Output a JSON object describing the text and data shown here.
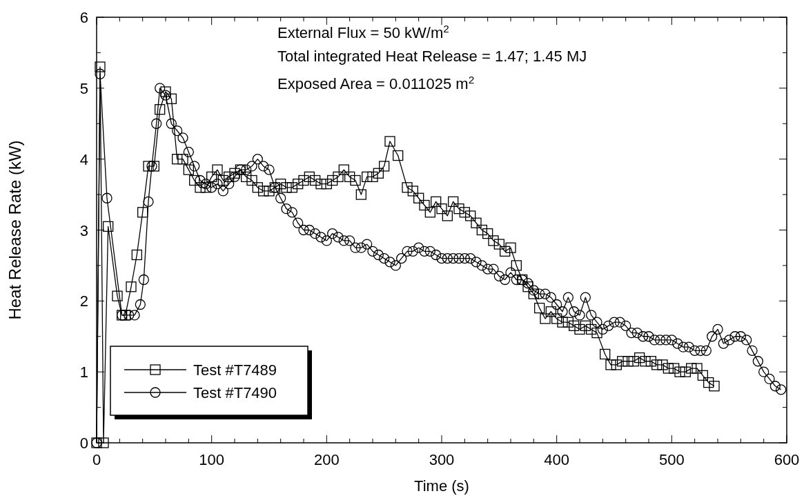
{
  "chart_data": {
    "type": "line",
    "xlabel": "Time (s)",
    "ylabel": "Heat Release Rate (kW)",
    "xlim": [
      0,
      600
    ],
    "ylim": [
      0,
      6
    ],
    "xticks": [
      0,
      {
        "value": 20,
        "label": null
      },
      {
        "value": 40,
        "label": null
      },
      {
        "value": 60,
        "label": null
      },
      {
        "value": 80,
        "label": null
      },
      100,
      {
        "value": 120,
        "label": null
      },
      {
        "value": 140,
        "label": null
      },
      {
        "value": 160,
        "label": null
      },
      {
        "value": 180,
        "label": null
      },
      200,
      {
        "value": 220,
        "label": null
      },
      {
        "value": 240,
        "label": null
      },
      {
        "value": 260,
        "label": null
      },
      {
        "value": 280,
        "label": null
      },
      300,
      {
        "value": 320,
        "label": null
      },
      {
        "value": 340,
        "label": null
      },
      {
        "value": 360,
        "label": null
      },
      {
        "value": 380,
        "label": null
      },
      400,
      {
        "value": 420,
        "label": null
      },
      {
        "value": 440,
        "label": null
      },
      {
        "value": 460,
        "label": null
      },
      {
        "value": 480,
        "label": null
      },
      500,
      {
        "value": 520,
        "label": null
      },
      {
        "value": 540,
        "label": null
      },
      {
        "value": 560,
        "label": null
      },
      {
        "value": 580,
        "label": null
      },
      600
    ],
    "yticks": [
      0,
      {
        "value": 0.5,
        "label": null
      },
      1,
      {
        "value": 1.5,
        "label": null
      },
      2,
      {
        "value": 2.5,
        "label": null
      },
      3,
      {
        "value": 3.5,
        "label": null
      },
      4,
      {
        "value": 4.5,
        "label": null
      },
      5,
      {
        "value": 5.5,
        "label": null
      },
      6
    ],
    "grid": false,
    "legend": "bottom left",
    "line_style": "solid",
    "annotations": [
      "External Flux = 50 kW/m$^{2}$",
      "Total integrated Heat Release = 1.47; 1.45 MJ",
      "Exposed Area = 0.011025 m$^{2}$"
    ],
    "series": [
      {
        "name": "Test #T7489",
        "color": "#000000",
        "marker": "square",
        "x": [
          0,
          3,
          6,
          10,
          18,
          22,
          25,
          30,
          35,
          40,
          45,
          50,
          55,
          60,
          65,
          70,
          75,
          80,
          85,
          90,
          95,
          100,
          105,
          110,
          115,
          120,
          125,
          130,
          135,
          140,
          145,
          150,
          155,
          160,
          165,
          170,
          175,
          180,
          185,
          190,
          195,
          200,
          205,
          210,
          215,
          220,
          225,
          230,
          235,
          240,
          245,
          250,
          255,
          262,
          270,
          275,
          280,
          285,
          290,
          295,
          300,
          305,
          310,
          315,
          320,
          325,
          330,
          335,
          340,
          345,
          350,
          355,
          360,
          365,
          370,
          375,
          380,
          385,
          390,
          395,
          400,
          405,
          410,
          415,
          420,
          425,
          430,
          435,
          442,
          447,
          452,
          457,
          462,
          467,
          472,
          477,
          482,
          487,
          492,
          497,
          502,
          507,
          512,
          517,
          522,
          527,
          532,
          537
        ],
        "values": [
          0,
          5.3,
          0,
          3.05,
          2.07,
          1.8,
          1.8,
          2.2,
          2.65,
          3.25,
          3.9,
          3.9,
          4.7,
          4.95,
          4.85,
          4.0,
          4.0,
          3.85,
          3.7,
          3.6,
          3.6,
          3.75,
          3.85,
          3.7,
          3.75,
          3.8,
          3.85,
          3.75,
          3.7,
          3.6,
          3.55,
          3.55,
          3.6,
          3.65,
          3.6,
          3.6,
          3.65,
          3.7,
          3.75,
          3.7,
          3.65,
          3.65,
          3.7,
          3.75,
          3.85,
          3.75,
          3.7,
          3.5,
          3.75,
          3.75,
          3.8,
          3.9,
          4.25,
          4.05,
          3.6,
          3.55,
          3.45,
          3.35,
          3.25,
          3.4,
          3.3,
          3.2,
          3.4,
          3.3,
          3.25,
          3.2,
          3.1,
          3.0,
          2.95,
          2.85,
          2.8,
          2.7,
          2.75,
          2.5,
          2.3,
          2.2,
          2.1,
          1.9,
          1.75,
          1.85,
          1.75,
          1.7,
          1.7,
          1.65,
          1.6,
          1.65,
          1.6,
          1.55,
          1.25,
          1.1,
          1.1,
          1.15,
          1.15,
          1.15,
          1.2,
          1.15,
          1.15,
          1.1,
          1.1,
          1.05,
          1.05,
          1.0,
          1.0,
          1.05,
          1.05,
          0.95,
          0.85,
          0.8
        ]
      },
      {
        "name": "Test #T7490",
        "color": "#000000",
        "marker": "circle",
        "x": [
          0,
          3,
          9,
          22,
          28,
          33,
          38,
          41,
          45,
          48,
          52,
          55,
          60,
          65,
          70,
          75,
          80,
          85,
          90,
          95,
          100,
          105,
          110,
          115,
          120,
          125,
          130,
          135,
          140,
          145,
          150,
          155,
          160,
          165,
          170,
          175,
          180,
          185,
          190,
          195,
          200,
          205,
          210,
          215,
          220,
          225,
          230,
          235,
          240,
          245,
          250,
          255,
          260,
          265,
          270,
          275,
          280,
          285,
          290,
          295,
          300,
          305,
          310,
          315,
          320,
          325,
          330,
          335,
          340,
          345,
          350,
          355,
          360,
          365,
          370,
          375,
          380,
          385,
          390,
          395,
          400,
          405,
          410,
          415,
          420,
          425,
          430,
          435,
          440,
          445,
          450,
          455,
          460,
          465,
          470,
          475,
          480,
          485,
          490,
          495,
          500,
          505,
          510,
          515,
          520,
          525,
          530,
          535,
          540,
          545,
          550,
          555,
          560,
          565,
          570,
          575,
          580,
          585,
          590,
          595
        ],
        "values": [
          0,
          5.2,
          3.45,
          1.8,
          1.8,
          1.8,
          1.95,
          2.3,
          3.4,
          3.9,
          4.5,
          5.0,
          4.9,
          4.5,
          4.4,
          4.3,
          4.1,
          3.9,
          3.7,
          3.65,
          3.6,
          3.65,
          3.55,
          3.65,
          3.75,
          3.85,
          3.85,
          3.9,
          4.0,
          3.9,
          3.85,
          3.6,
          3.45,
          3.3,
          3.25,
          3.1,
          3.0,
          3.0,
          2.95,
          2.9,
          2.85,
          2.95,
          2.9,
          2.85,
          2.85,
          2.75,
          2.75,
          2.8,
          2.7,
          2.65,
          2.6,
          2.55,
          2.5,
          2.6,
          2.7,
          2.7,
          2.75,
          2.7,
          2.7,
          2.65,
          2.6,
          2.6,
          2.6,
          2.6,
          2.6,
          2.6,
          2.55,
          2.5,
          2.45,
          2.45,
          2.35,
          2.3,
          2.4,
          2.3,
          2.3,
          2.25,
          2.15,
          2.1,
          2.1,
          2.05,
          1.95,
          1.85,
          2.05,
          1.85,
          1.8,
          2.05,
          1.8,
          1.7,
          1.6,
          1.65,
          1.7,
          1.7,
          1.65,
          1.55,
          1.55,
          1.5,
          1.5,
          1.45,
          1.45,
          1.45,
          1.45,
          1.4,
          1.35,
          1.35,
          1.3,
          1.3,
          1.3,
          1.5,
          1.6,
          1.4,
          1.45,
          1.5,
          1.5,
          1.45,
          1.3,
          1.15,
          1.0,
          0.9,
          0.8,
          0.75
        ]
      }
    ]
  }
}
